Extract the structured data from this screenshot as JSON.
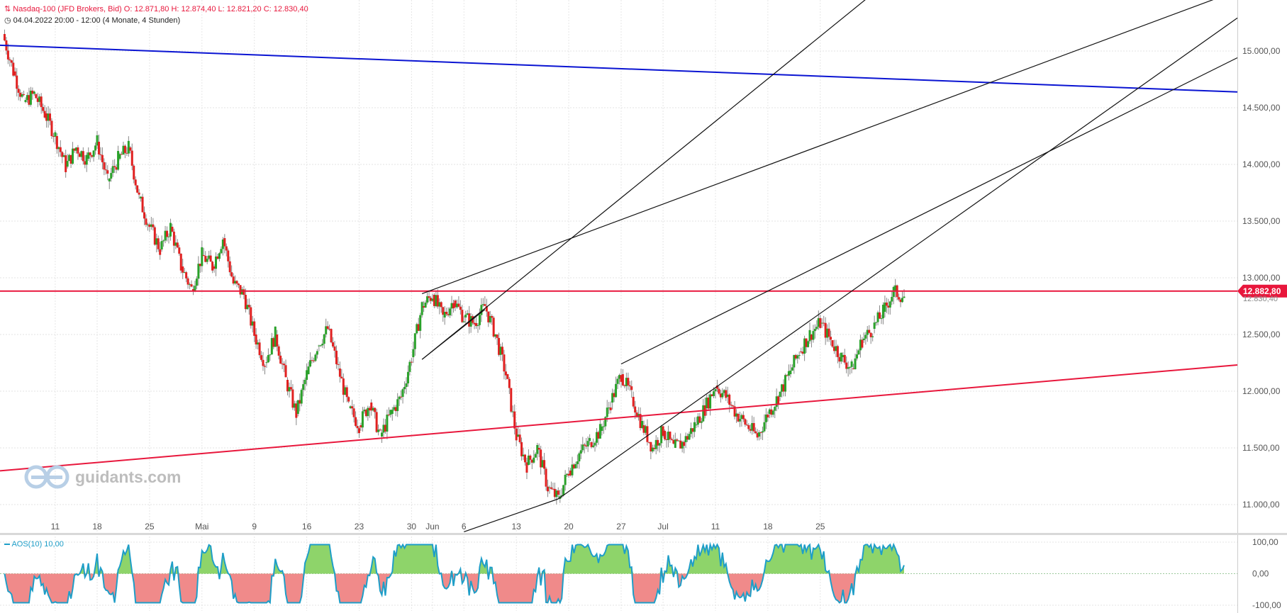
{
  "header": {
    "instrument_line": "Nasdaq-100 (JFD Brokers, Bid)  O: 12.871,80  H: 12.874,40  L: 12.821,20  C: 12.830,40",
    "range_line": "04.04.2022 20:00 - 12:00   (4 Monate, 4 Stunden)"
  },
  "watermark": {
    "text": "guidants.com"
  },
  "colors": {
    "up": "#2aa12a",
    "down": "#e02020",
    "blue_line": "#0a14d2",
    "red_line": "#e8173c",
    "black_line": "#111111",
    "price_badge": "#e8173c",
    "osc_fill_pos": "#8ed46a",
    "osc_fill_neg": "#f08a8a",
    "osc_line": "#1e9ec8"
  },
  "chart_data": [
    {
      "type": "candlestick",
      "title": "Nasdaq-100 (JFD Brokers, Bid)",
      "timeframe": "4 Stunden",
      "ylim": [
        10750,
        15450
      ],
      "ytick_values": [
        11000,
        11500,
        12000,
        12500,
        13000,
        13500,
        14000,
        14500,
        15000
      ],
      "ytick_labels": [
        "11.000,00",
        "11.500,00",
        "12.000,00",
        "12.500,00",
        "13.000,00",
        "13.500,00",
        "14.000,00",
        "14.500,00",
        "15.000,00"
      ],
      "xtick_labels": [
        "11",
        "18",
        "25",
        "Mai",
        "9",
        "16",
        "23",
        "30",
        "Jun",
        "6",
        "13",
        "20",
        "27",
        "Jul",
        "11",
        "18",
        "25"
      ],
      "grid": true,
      "current_price": {
        "value": 12882.8,
        "label": "12.882,80"
      },
      "close_label": "12.830,40",
      "daily_path": [
        [
          "04.04.",
          15150
        ],
        [
          "05.04.",
          14820
        ],
        [
          "06.04.",
          14550
        ],
        [
          "07.04.",
          14620
        ],
        [
          "08.04.",
          14450
        ],
        [
          "11.04.",
          14250
        ],
        [
          "12.04.",
          13980
        ],
        [
          "13.04.",
          14150
        ],
        [
          "14.04.",
          14050
        ],
        [
          "18.04.",
          14200
        ],
        [
          "19.04.",
          13850
        ],
        [
          "20.04.",
          14050
        ],
        [
          "21.04.",
          14150
        ],
        [
          "22.04.",
          13700
        ],
        [
          "25.04.",
          13450
        ],
        [
          "26.04.",
          13250
        ],
        [
          "27.04.",
          13450
        ],
        [
          "28.04.",
          13100
        ],
        [
          "29.04.",
          12900
        ],
        [
          "02.05.",
          13200
        ],
        [
          "03.05.",
          13100
        ],
        [
          "04.05.",
          13350
        ],
        [
          "05.05.",
          12950
        ],
        [
          "06.05.",
          12850
        ],
        [
          "09.05.",
          12500
        ],
        [
          "10.05.",
          12250
        ],
        [
          "11.05.",
          12500
        ],
        [
          "12.05.",
          12100
        ],
        [
          "13.05.",
          11800
        ],
        [
          "16.05.",
          12150
        ],
        [
          "17.05.",
          12400
        ],
        [
          "18.05.",
          12550
        ],
        [
          "19.05.",
          12200
        ],
        [
          "20.05.",
          11850
        ],
        [
          "23.05.",
          11700
        ],
        [
          "24.05.",
          11900
        ],
        [
          "25.05.",
          11600
        ],
        [
          "26.05.",
          11800
        ],
        [
          "27.05.",
          11950
        ],
        [
          "30.05.",
          12300
        ],
        [
          "31.05.",
          12750
        ],
        [
          "01.06.",
          12850
        ],
        [
          "02.06.",
          12650
        ],
        [
          "03.06.",
          12800
        ],
        [
          "06.06.",
          12650
        ],
        [
          "07.06.",
          12600
        ],
        [
          "08.06.",
          12750
        ],
        [
          "09.06.",
          12500
        ],
        [
          "10.06.",
          12150
        ],
        [
          "13.06.",
          11600
        ],
        [
          "14.06.",
          11350
        ],
        [
          "15.06.",
          11500
        ],
        [
          "16.06.",
          11150
        ],
        [
          "17.06.",
          11050
        ],
        [
          "20.06.",
          11300
        ],
        [
          "21.06.",
          11450
        ],
        [
          "22.06.",
          11550
        ],
        [
          "23.06.",
          11650
        ],
        [
          "24.06.",
          11900
        ],
        [
          "27.06.",
          12150
        ],
        [
          "28.06.",
          11950
        ],
        [
          "29.06.",
          11700
        ],
        [
          "30.06.",
          11500
        ],
        [
          "01.07.",
          11650
        ],
        [
          "05.07.",
          11500
        ],
        [
          "06.07.",
          11550
        ],
        [
          "07.07.",
          11700
        ],
        [
          "08.07.",
          11850
        ],
        [
          "11.07.",
          12050
        ],
        [
          "12.07.",
          11950
        ],
        [
          "13.07.",
          11800
        ],
        [
          "14.07.",
          11700
        ],
        [
          "15.07.",
          11600
        ],
        [
          "18.07.",
          11800
        ],
        [
          "19.07.",
          11950
        ],
        [
          "20.07.",
          12150
        ],
        [
          "21.07.",
          12350
        ],
        [
          "22.07.",
          12500
        ],
        [
          "25.07.",
          12600
        ],
        [
          "26.07.",
          12450
        ],
        [
          "27.07.",
          12300
        ],
        [
          "28.07.",
          12200
        ],
        [
          "29.07.",
          12450
        ],
        [
          "01.08.",
          12550
        ],
        [
          "02.08.",
          12700
        ],
        [
          "03.08.",
          12880
        ],
        [
          "04.08.",
          12830
        ]
      ],
      "trendlines": [
        {
          "name": "blue-resistance",
          "color": "blue",
          "from": [
            "04.04.",
            15050
          ],
          "to": [
            "04.08.",
            14750
          ]
        },
        {
          "name": "red-support",
          "color": "red",
          "from": [
            "04.04.",
            11300
          ],
          "to": [
            "04.08.",
            11980
          ]
        },
        {
          "name": "red-horizontal",
          "color": "red",
          "from": [
            "04.04.",
            12882.8
          ],
          "to": [
            "04.08.",
            12882.8
          ]
        }
      ]
    },
    {
      "type": "area",
      "title": "AOS(10)",
      "parameter_label": "AOS(10)  10,00",
      "ylim": [
        -100,
        100
      ],
      "ytick_labels": [
        "100,00",
        "0,00",
        "-100,00"
      ],
      "zero_line": true
    }
  ]
}
